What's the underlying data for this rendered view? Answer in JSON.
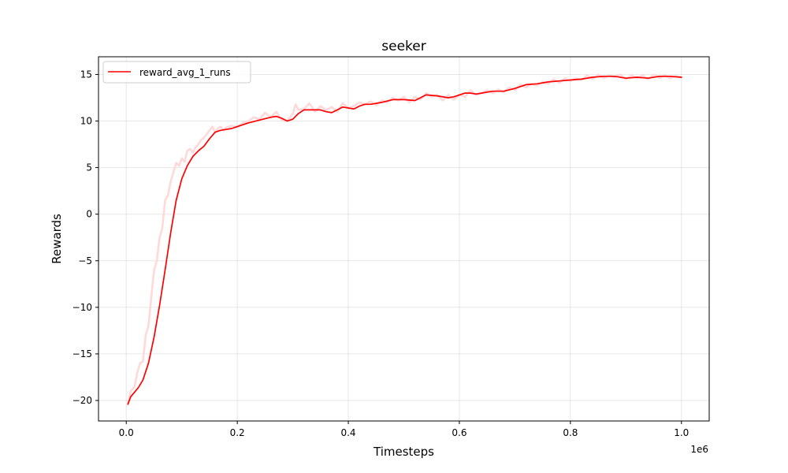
{
  "chart_data": {
    "type": "line",
    "title": "seeker",
    "xlabel": "Timesteps",
    "ylabel": "Rewards",
    "x_offset_text": "1e6",
    "xlim": [
      -0.05,
      1.05
    ],
    "ylim": [
      -22.2,
      16.9
    ],
    "xticks": [
      0.0,
      0.2,
      0.4,
      0.6,
      0.8,
      1.0
    ],
    "xtick_labels": [
      "0.0",
      "0.2",
      "0.4",
      "0.6",
      "0.8",
      "1.0"
    ],
    "yticks": [
      -20,
      -15,
      -10,
      -5,
      0,
      5,
      10,
      15
    ],
    "ytick_labels": [
      "−20",
      "−15",
      "−10",
      "−5",
      "0",
      "5",
      "10",
      "15"
    ],
    "grid": true,
    "legend_position": "top-left",
    "series": [
      {
        "name": "reward_avg_1_runs",
        "color": "#ff0000",
        "in_legend": true,
        "x": [
          0.003,
          0.008,
          0.015,
          0.022,
          0.03,
          0.04,
          0.05,
          0.06,
          0.07,
          0.08,
          0.09,
          0.1,
          0.11,
          0.12,
          0.13,
          0.14,
          0.15,
          0.16,
          0.17,
          0.18,
          0.19,
          0.2,
          0.22,
          0.24,
          0.26,
          0.27,
          0.28,
          0.29,
          0.3,
          0.31,
          0.32,
          0.33,
          0.35,
          0.36,
          0.37,
          0.38,
          0.39,
          0.4,
          0.41,
          0.42,
          0.43,
          0.44,
          0.46,
          0.48,
          0.5,
          0.52,
          0.53,
          0.54,
          0.56,
          0.58,
          0.59,
          0.6,
          0.61,
          0.62,
          0.63,
          0.64,
          0.66,
          0.68,
          0.7,
          0.72,
          0.74,
          0.76,
          0.78,
          0.8,
          0.82,
          0.84,
          0.86,
          0.88,
          0.9,
          0.92,
          0.94,
          0.96,
          0.98,
          1.0
        ],
        "y": [
          -20.4,
          -19.6,
          -19.1,
          -18.6,
          -17.8,
          -16.0,
          -13.2,
          -9.8,
          -6.0,
          -2.0,
          1.5,
          3.8,
          5.2,
          6.2,
          6.8,
          7.3,
          8.1,
          8.8,
          9.0,
          9.1,
          9.2,
          9.4,
          9.8,
          10.1,
          10.4,
          10.5,
          10.3,
          10.0,
          10.2,
          10.8,
          11.2,
          11.2,
          11.2,
          11.0,
          10.9,
          11.2,
          11.5,
          11.4,
          11.3,
          11.6,
          11.8,
          11.8,
          12.0,
          12.3,
          12.3,
          12.2,
          12.5,
          12.8,
          12.7,
          12.5,
          12.6,
          12.8,
          13.0,
          13.0,
          12.9,
          13.0,
          13.2,
          13.2,
          13.5,
          13.9,
          14.0,
          14.2,
          14.3,
          14.4,
          14.5,
          14.7,
          14.8,
          14.8,
          14.6,
          14.7,
          14.6,
          14.8,
          14.8,
          14.7
        ]
      },
      {
        "name": "",
        "color": "#ffd9d9",
        "in_legend": false,
        "x": [
          0.003,
          0.008,
          0.015,
          0.02,
          0.025,
          0.03,
          0.035,
          0.04,
          0.045,
          0.05,
          0.055,
          0.06,
          0.065,
          0.07,
          0.075,
          0.08,
          0.085,
          0.09,
          0.095,
          0.1,
          0.105,
          0.11,
          0.115,
          0.12,
          0.125,
          0.13,
          0.135,
          0.14,
          0.145,
          0.15,
          0.155,
          0.16,
          0.165,
          0.17,
          0.175,
          0.18,
          0.19,
          0.2,
          0.21,
          0.22,
          0.23,
          0.24,
          0.25,
          0.26,
          0.27,
          0.28,
          0.29,
          0.3,
          0.305,
          0.31,
          0.32,
          0.33,
          0.34,
          0.35,
          0.36,
          0.37,
          0.38,
          0.39,
          0.4,
          0.41,
          0.42,
          0.43,
          0.44,
          0.45,
          0.46,
          0.47,
          0.48,
          0.49,
          0.5,
          0.51,
          0.52,
          0.53,
          0.54,
          0.55,
          0.56,
          0.57,
          0.58,
          0.59,
          0.6,
          0.61,
          0.62,
          0.63,
          0.64,
          0.65,
          0.66,
          0.67,
          0.68,
          0.69,
          0.7,
          0.71,
          0.72,
          0.73,
          0.74,
          0.75,
          0.76,
          0.77,
          0.78,
          0.79,
          0.8,
          0.81,
          0.82,
          0.83,
          0.84,
          0.85,
          0.86,
          0.87,
          0.88,
          0.89,
          0.9,
          0.91,
          0.92,
          0.93,
          0.94,
          0.95,
          0.96,
          0.97,
          0.98,
          0.99,
          1.0
        ],
        "y": [
          -20.4,
          -19.0,
          -18.5,
          -17.0,
          -16.0,
          -15.8,
          -13.0,
          -12.0,
          -9.0,
          -6.0,
          -5.0,
          -2.5,
          -1.5,
          1.5,
          2.0,
          3.5,
          4.5,
          5.5,
          5.2,
          6.0,
          5.6,
          6.8,
          7.0,
          6.6,
          7.2,
          7.5,
          8.0,
          8.2,
          8.6,
          9.0,
          9.4,
          8.8,
          9.2,
          9.4,
          9.0,
          9.3,
          9.5,
          9.3,
          9.8,
          10.0,
          10.4,
          10.2,
          10.9,
          10.4,
          11.0,
          10.1,
          10.0,
          10.8,
          11.8,
          11.2,
          11.3,
          11.9,
          11.0,
          11.6,
          11.2,
          11.5,
          11.0,
          11.9,
          11.4,
          11.6,
          12.0,
          11.8,
          12.1,
          11.7,
          12.2,
          12.0,
          12.5,
          12.2,
          12.6,
          12.0,
          12.6,
          12.3,
          13.0,
          12.6,
          12.8,
          12.2,
          12.8,
          12.3,
          12.8,
          12.6,
          13.3,
          12.8,
          13.0,
          13.3,
          13.0,
          13.4,
          13.1,
          13.6,
          13.3,
          13.9,
          13.6,
          14.0,
          13.8,
          14.2,
          14.0,
          14.5,
          14.1,
          14.6,
          14.3,
          14.6,
          14.4,
          14.9,
          14.5,
          15.0,
          14.6,
          14.9,
          14.7,
          15.0,
          14.5,
          14.9,
          14.6,
          14.9,
          14.5,
          15.0,
          14.6,
          14.9,
          14.6,
          14.8,
          14.7
        ]
      }
    ]
  }
}
